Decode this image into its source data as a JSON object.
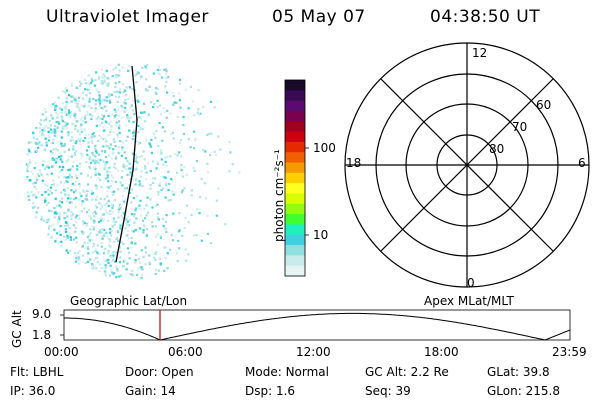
{
  "header": {
    "instrument": "Ultraviolet Imager",
    "date": "05 May 07",
    "time": "04:38:50 UT"
  },
  "colorbar": {
    "unit_label": "photon cm⁻²s⁻¹",
    "tick_labels": [
      "100",
      "10"
    ],
    "colors": [
      "#1a0a2a",
      "#3a0b55",
      "#5a0a70",
      "#7a0050",
      "#a00020",
      "#cc0010",
      "#e52a00",
      "#f06000",
      "#f59a00",
      "#ffd000",
      "#ffff20",
      "#d8ff00",
      "#90ff10",
      "#40ff30",
      "#20f0c0",
      "#40d0e0",
      "#90e0e0",
      "#c8ecec",
      "#e6f4f4"
    ]
  },
  "polar_plot": {
    "mlt_labels": {
      "top": "12",
      "left": "18",
      "right": "6",
      "bottom": "0"
    },
    "lat_labels": [
      "60",
      "70",
      "80"
    ]
  },
  "timeline": {
    "left_label": "Geographic Lat/Lon",
    "right_label": "Apex MLat/MLT",
    "y_axis_label": "GC Alt",
    "y_ticks": [
      "9.0",
      "1.8"
    ],
    "x_ticks": [
      "00:00",
      "06:00",
      "12:00",
      "18:00",
      "23:59"
    ],
    "current_time_color": "#cc0000"
  },
  "info": {
    "row1": [
      {
        "label": "Flt:",
        "value": "LBHL"
      },
      {
        "label": "Door:",
        "value": "Open"
      },
      {
        "label": "Mode:",
        "value": "Normal"
      },
      {
        "label": "GC Alt:",
        "value": "2.2 Re"
      },
      {
        "label": "GLat:",
        "value": "39.8"
      }
    ],
    "row2": [
      {
        "label": "IP:",
        "value": "36.0"
      },
      {
        "label": "Gain:",
        "value": "14"
      },
      {
        "label": "Dsp:",
        "value": "1.6"
      },
      {
        "label": "Seq:",
        "value": "39"
      },
      {
        "label": "GLon:",
        "value": "215.8"
      }
    ]
  }
}
